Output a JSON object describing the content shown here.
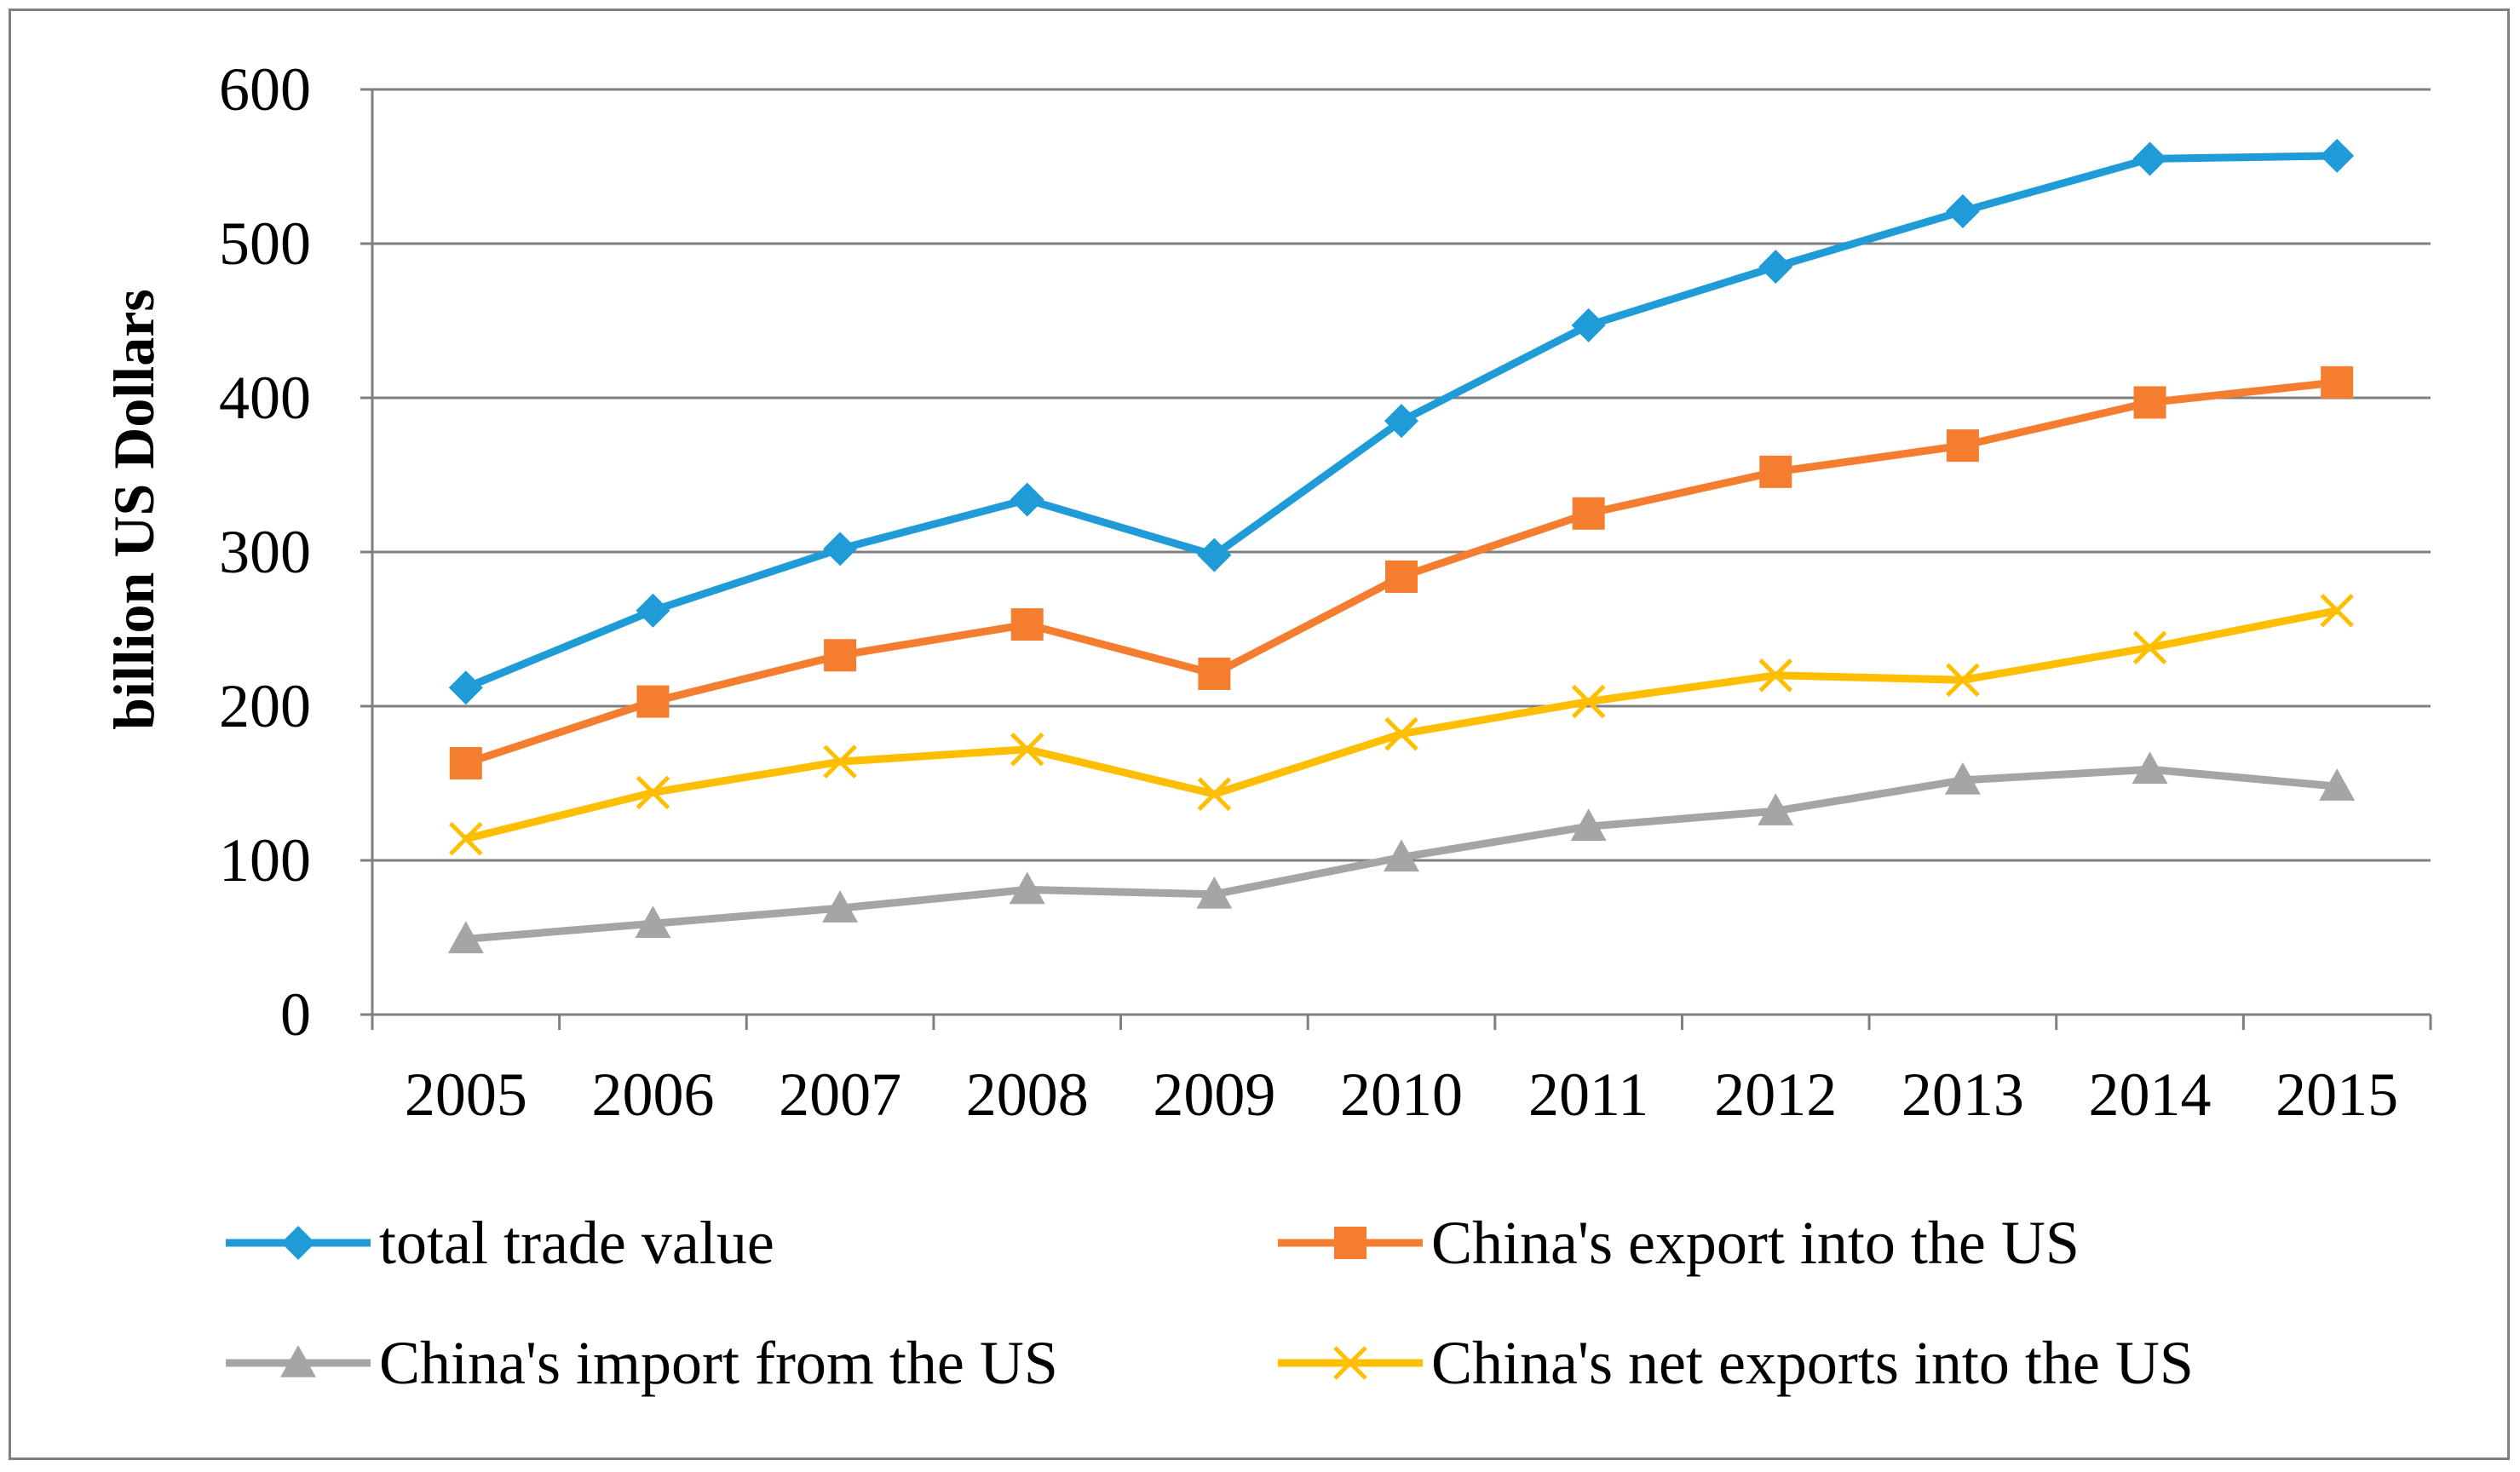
{
  "chart_data": {
    "type": "line",
    "title": "",
    "xlabel": "",
    "ylabel": "billion US Dollars",
    "ylim": [
      0,
      600
    ],
    "yticks": [
      0,
      100,
      200,
      300,
      400,
      500,
      600
    ],
    "grid": true,
    "legend_position": "bottom",
    "categories": [
      "2005",
      "2006",
      "2007",
      "2008",
      "2009",
      "2010",
      "2011",
      "2012",
      "2013",
      "2014",
      "2015"
    ],
    "series": [
      {
        "name": "total trade value",
        "color": "#1f9bd7",
        "marker": "diamond",
        "values": [
          212,
          262,
          302,
          334,
          298,
          385,
          447,
          485,
          521,
          555,
          557
        ]
      },
      {
        "name": "China's export into the US",
        "color": "#f57d2f",
        "marker": "square",
        "values": [
          163,
          203,
          233,
          253,
          221,
          284,
          325,
          352,
          369,
          397,
          410
        ]
      },
      {
        "name": "China's import from the US",
        "color": "#a5a5a5",
        "marker": "triangle",
        "values": [
          49,
          59,
          69,
          81,
          78,
          102,
          122,
          132,
          152,
          159,
          148
        ]
      },
      {
        "name": "China's net exports into the US",
        "color": "#ffbf00",
        "marker": "x",
        "values": [
          114,
          144,
          164,
          172,
          143,
          182,
          203,
          220,
          217,
          238,
          262
        ]
      }
    ]
  }
}
